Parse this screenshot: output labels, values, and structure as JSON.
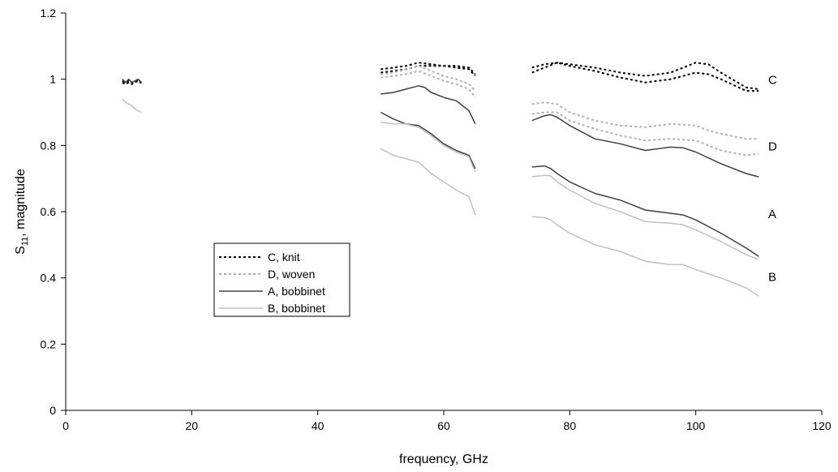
{
  "chart_data": {
    "type": "line",
    "xlabel": "frequency, GHz",
    "ylabel_main": "S",
    "ylabel_sub": "11",
    "ylabel_rest": ", magnitude",
    "xlim": [
      0,
      120
    ],
    "ylim": [
      0,
      1.2
    ],
    "xticks": [
      0,
      20,
      40,
      60,
      80,
      100,
      120
    ],
    "yticks": [
      0,
      0.2,
      0.4,
      0.6,
      0.8,
      1,
      1.2
    ],
    "xtick_labels": [
      "0",
      "20",
      "40",
      "60",
      "80",
      "100",
      "120"
    ],
    "ytick_labels": [
      "0",
      "0.2",
      "0.4",
      "0.6",
      "0.8",
      "1",
      "1.2"
    ],
    "grid": false,
    "legend_position": "center-left",
    "series": [
      {
        "name": "C, knit",
        "end_label": "C",
        "color": "#000000",
        "style": "dotted",
        "segments": [
          [
            [
              9,
              0.995
            ],
            [
              9.5,
              0.99
            ],
            [
              10,
              0.995
            ],
            [
              10.5,
              0.99
            ],
            [
              11,
              0.993
            ],
            [
              11.5,
              0.998
            ],
            [
              12,
              0.99
            ]
          ],
          [
            [
              9,
              0.99
            ],
            [
              9.5,
              0.985
            ],
            [
              10,
              0.99
            ],
            [
              10.5,
              0.985
            ],
            [
              11,
              0.99
            ],
            [
              11.5,
              0.995
            ],
            [
              12,
              0.988
            ]
          ],
          [
            [
              50,
              1.03
            ],
            [
              52,
              1.035
            ],
            [
              54,
              1.04
            ],
            [
              56,
              1.05
            ],
            [
              58,
              1.045
            ],
            [
              60,
              1.04
            ],
            [
              62,
              1.04
            ],
            [
              64,
              1.035
            ],
            [
              65,
              1.015
            ]
          ],
          [
            [
              50,
              1.02
            ],
            [
              52,
              1.025
            ],
            [
              54,
              1.03
            ],
            [
              56,
              1.04
            ],
            [
              58,
              1.04
            ],
            [
              60,
              1.04
            ],
            [
              62,
              1.035
            ],
            [
              64,
              1.03
            ],
            [
              65,
              1.01
            ]
          ],
          [
            [
              74,
              1.035
            ],
            [
              76,
              1.045
            ],
            [
              78,
              1.05
            ],
            [
              80,
              1.045
            ],
            [
              84,
              1.035
            ],
            [
              88,
              1.02
            ],
            [
              92,
              1.01
            ],
            [
              96,
              1.02
            ],
            [
              100,
              1.05
            ],
            [
              102,
              1.045
            ],
            [
              104,
              1.02
            ],
            [
              108,
              0.975
            ],
            [
              110,
              0.97
            ]
          ],
          [
            [
              74,
              1.02
            ],
            [
              76,
              1.035
            ],
            [
              78,
              1.05
            ],
            [
              80,
              1.04
            ],
            [
              84,
              1.025
            ],
            [
              88,
              1.005
            ],
            [
              92,
              0.99
            ],
            [
              96,
              1.0
            ],
            [
              100,
              1.02
            ],
            [
              102,
              1.015
            ],
            [
              104,
              1.0
            ],
            [
              108,
              0.965
            ],
            [
              110,
              0.965
            ]
          ]
        ]
      },
      {
        "name": "D, woven",
        "end_label": "D",
        "color": "#b0b0b0",
        "style": "dotted",
        "segments": [
          [
            [
              50,
              1.015
            ],
            [
              52,
              1.02
            ],
            [
              54,
              1.03
            ],
            [
              56,
              1.04
            ],
            [
              58,
              1.025
            ],
            [
              60,
              1.01
            ],
            [
              62,
              1.0
            ],
            [
              64,
              0.985
            ],
            [
              65,
              0.965
            ]
          ],
          [
            [
              50,
              1.005
            ],
            [
              52,
              1.01
            ],
            [
              54,
              1.015
            ],
            [
              56,
              1.025
            ],
            [
              58,
              1.01
            ],
            [
              60,
              0.995
            ],
            [
              62,
              0.985
            ],
            [
              64,
              0.97
            ],
            [
              65,
              0.945
            ]
          ],
          [
            [
              74,
              0.925
            ],
            [
              76,
              0.93
            ],
            [
              78,
              0.925
            ],
            [
              80,
              0.9
            ],
            [
              84,
              0.875
            ],
            [
              88,
              0.86
            ],
            [
              92,
              0.855
            ],
            [
              96,
              0.865
            ],
            [
              100,
              0.86
            ],
            [
              102,
              0.845
            ],
            [
              104,
              0.835
            ],
            [
              108,
              0.82
            ],
            [
              110,
              0.82
            ]
          ],
          [
            [
              74,
              0.895
            ],
            [
              76,
              0.9
            ],
            [
              78,
              0.9
            ],
            [
              80,
              0.875
            ],
            [
              84,
              0.85
            ],
            [
              88,
              0.83
            ],
            [
              92,
              0.815
            ],
            [
              96,
              0.82
            ],
            [
              100,
              0.815
            ],
            [
              102,
              0.8
            ],
            [
              104,
              0.785
            ],
            [
              108,
              0.77
            ],
            [
              110,
              0.775
            ]
          ]
        ]
      },
      {
        "name": "A, bobbinet",
        "end_label": "A",
        "color": "#404040",
        "style": "solid",
        "segments": [
          [
            [
              9,
              1.0
            ],
            [
              9.5,
              0.99
            ],
            [
              10,
              1.0
            ],
            [
              10.5,
              0.99
            ],
            [
              11,
              0.995
            ],
            [
              11.5,
              1.0
            ],
            [
              12,
              0.99
            ]
          ],
          [
            [
              50,
              0.955
            ],
            [
              52,
              0.96
            ],
            [
              54,
              0.97
            ],
            [
              56,
              0.98
            ],
            [
              57,
              0.975
            ],
            [
              58,
              0.96
            ],
            [
              60,
              0.945
            ],
            [
              62,
              0.935
            ],
            [
              64,
              0.905
            ],
            [
              65,
              0.865
            ]
          ],
          [
            [
              50,
              0.9
            ],
            [
              52,
              0.88
            ],
            [
              54,
              0.865
            ],
            [
              56,
              0.86
            ],
            [
              58,
              0.835
            ],
            [
              60,
              0.805
            ],
            [
              62,
              0.785
            ],
            [
              64,
              0.77
            ],
            [
              65,
              0.73
            ]
          ],
          [
            [
              74,
              0.875
            ],
            [
              76,
              0.89
            ],
            [
              77,
              0.893
            ],
            [
              78,
              0.885
            ],
            [
              80,
              0.86
            ],
            [
              84,
              0.82
            ],
            [
              88,
              0.805
            ],
            [
              92,
              0.785
            ],
            [
              96,
              0.795
            ],
            [
              98,
              0.793
            ],
            [
              100,
              0.78
            ],
            [
              104,
              0.745
            ],
            [
              108,
              0.715
            ],
            [
              110,
              0.705
            ]
          ],
          [
            [
              74,
              0.735
            ],
            [
              76,
              0.738
            ],
            [
              77,
              0.73
            ],
            [
              78,
              0.715
            ],
            [
              80,
              0.69
            ],
            [
              84,
              0.655
            ],
            [
              88,
              0.635
            ],
            [
              92,
              0.605
            ],
            [
              96,
              0.595
            ],
            [
              98,
              0.59
            ],
            [
              100,
              0.575
            ],
            [
              104,
              0.535
            ],
            [
              108,
              0.49
            ],
            [
              110,
              0.465
            ]
          ]
        ]
      },
      {
        "name": "B, bobbinet",
        "end_label": "B",
        "color": "#c0c0c0",
        "style": "solid",
        "segments": [
          [
            [
              9,
              0.94
            ],
            [
              9.5,
              0.93
            ],
            [
              10,
              0.925
            ],
            [
              10.5,
              0.92
            ],
            [
              11,
              0.91
            ],
            [
              11.5,
              0.905
            ],
            [
              12,
              0.9
            ]
          ],
          [
            [
              50,
              0.87
            ],
            [
              52,
              0.865
            ],
            [
              54,
              0.865
            ],
            [
              56,
              0.855
            ],
            [
              58,
              0.83
            ],
            [
              60,
              0.8
            ],
            [
              62,
              0.78
            ],
            [
              64,
              0.765
            ],
            [
              65,
              0.72
            ]
          ],
          [
            [
              50,
              0.79
            ],
            [
              52,
              0.77
            ],
            [
              54,
              0.76
            ],
            [
              56,
              0.75
            ],
            [
              58,
              0.715
            ],
            [
              60,
              0.69
            ],
            [
              62,
              0.665
            ],
            [
              64,
              0.645
            ],
            [
              65,
              0.59
            ]
          ],
          [
            [
              74,
              0.705
            ],
            [
              76,
              0.71
            ],
            [
              77,
              0.708
            ],
            [
              78,
              0.69
            ],
            [
              80,
              0.665
            ],
            [
              84,
              0.625
            ],
            [
              88,
              0.6
            ],
            [
              92,
              0.57
            ],
            [
              96,
              0.565
            ],
            [
              98,
              0.56
            ],
            [
              100,
              0.545
            ],
            [
              104,
              0.51
            ],
            [
              108,
              0.47
            ],
            [
              110,
              0.455
            ]
          ],
          [
            [
              74,
              0.585
            ],
            [
              76,
              0.582
            ],
            [
              77,
              0.575
            ],
            [
              78,
              0.56
            ],
            [
              80,
              0.535
            ],
            [
              84,
              0.5
            ],
            [
              88,
              0.48
            ],
            [
              92,
              0.45
            ],
            [
              96,
              0.44
            ],
            [
              98,
              0.44
            ],
            [
              100,
              0.425
            ],
            [
              104,
              0.4
            ],
            [
              108,
              0.37
            ],
            [
              110,
              0.345
            ]
          ]
        ]
      }
    ]
  }
}
